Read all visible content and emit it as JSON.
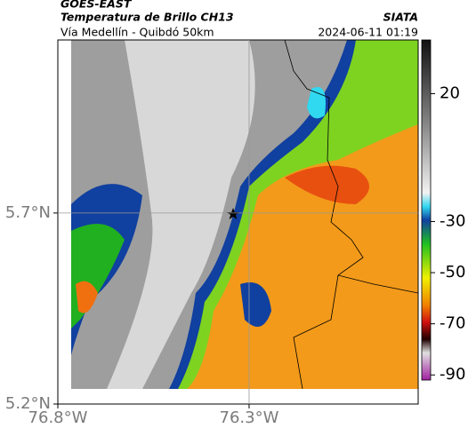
{
  "header": {
    "satellite": "GOES-EAST",
    "product": "Temperatura de Brillo CH13",
    "source": "SIATA",
    "route": "Vía Medellín - Quibdó 50km",
    "timestamp": "2024-06-11 01:19"
  },
  "map": {
    "xlim": [
      -76.8,
      -75.858
    ],
    "ylim": [
      5.2,
      6.153
    ],
    "xticks": [
      {
        "value": -76.8,
        "label": "76.8°W"
      },
      {
        "value": -76.3,
        "label": "76.3°W"
      }
    ],
    "yticks": [
      {
        "value": 5.2,
        "label": "5.2°N"
      },
      {
        "value": 5.7,
        "label": "5.7°N"
      }
    ]
  },
  "colorbar": {
    "lim": [
      -92,
      41
    ],
    "ticks": [
      20,
      -30,
      -50,
      -70,
      -90
    ]
  }
}
